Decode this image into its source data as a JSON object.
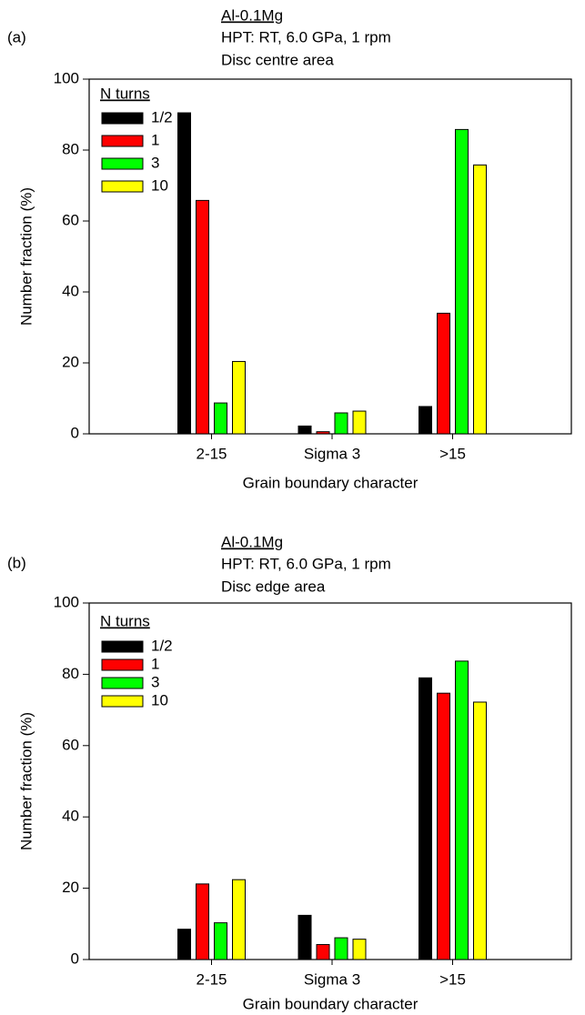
{
  "chart_data": [
    {
      "type": "bar",
      "panel_label": "(a)",
      "title": "Al-0.1Mg",
      "subtitle": [
        "HPT: RT, 6.0 GPa, 1 rpm",
        "Disc centre area"
      ],
      "x_label": "Grain boundary character",
      "y_label": "Number fraction (%)",
      "legend_title": "N turns",
      "categories": [
        "2-15",
        "Sigma 3",
        ">15"
      ],
      "series": [
        {
          "name": "1/2",
          "color": "#000000",
          "values": [
            90.5,
            2.2,
            7.7
          ]
        },
        {
          "name": "1",
          "color": "#ff0000",
          "values": [
            65.8,
            0.6,
            34
          ]
        },
        {
          "name": "3",
          "color": "#00ff00",
          "values": [
            8.7,
            5.9,
            85.8
          ]
        },
        {
          "name": "10",
          "color": "#ffff00",
          "values": [
            20.4,
            6.4,
            75.8
          ]
        }
      ],
      "ylim": [
        0,
        100
      ],
      "yticks": [
        0,
        20,
        40,
        60,
        80,
        100
      ]
    },
    {
      "type": "bar",
      "panel_label": "(b)",
      "title": "Al-0.1Mg",
      "subtitle": [
        "HPT: RT, 6.0 GPa, 1 rpm",
        "Disc edge area"
      ],
      "x_label": "Grain boundary character",
      "y_label": "Number fraction (%)",
      "legend_title": "N turns",
      "categories": [
        "2-15",
        "Sigma 3",
        ">15"
      ],
      "series": [
        {
          "name": "1/2",
          "color": "#000000",
          "values": [
            8.5,
            12.4,
            79
          ]
        },
        {
          "name": "1",
          "color": "#ff0000",
          "values": [
            21.2,
            4.2,
            74.7
          ]
        },
        {
          "name": "3",
          "color": "#00ff00",
          "values": [
            10.3,
            6.1,
            83.7
          ]
        },
        {
          "name": "10",
          "color": "#ffff00",
          "values": [
            22.4,
            5.7,
            72.2
          ]
        }
      ],
      "ylim": [
        0,
        100
      ],
      "yticks": [
        0,
        20,
        40,
        60,
        80,
        100
      ]
    }
  ]
}
